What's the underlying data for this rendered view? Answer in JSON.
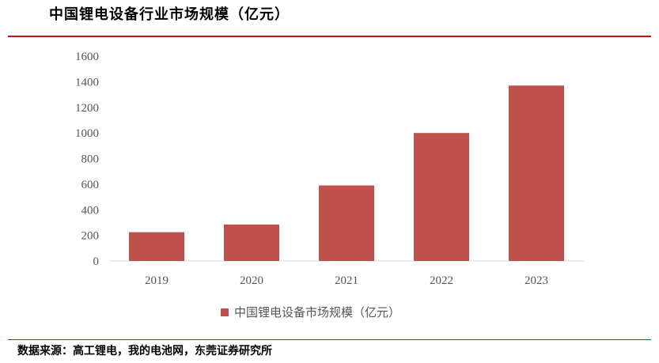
{
  "header": {
    "title": "中国锂电设备行业市场规模（亿元）"
  },
  "footer": {
    "source": "数据来源：高工锂电，我的电池网，东莞证券研究所"
  },
  "chart_data": {
    "type": "bar",
    "title": "中国锂电设备行业市场规模（亿元）",
    "categories": [
      "2019",
      "2020",
      "2021",
      "2022",
      "2023"
    ],
    "series": [
      {
        "name": "中国锂电设备市场规模（亿元）",
        "values": [
          225,
          285,
          590,
          1000,
          1370
        ],
        "color": "#c0504d"
      }
    ],
    "xlabel": "",
    "ylabel": "",
    "ylim": [
      0,
      1600
    ],
    "yticks": [
      "0",
      "200",
      "400",
      "600",
      "800",
      "1000",
      "1200",
      "1400",
      "1600"
    ],
    "grid": false,
    "legend": "bottom-center"
  }
}
